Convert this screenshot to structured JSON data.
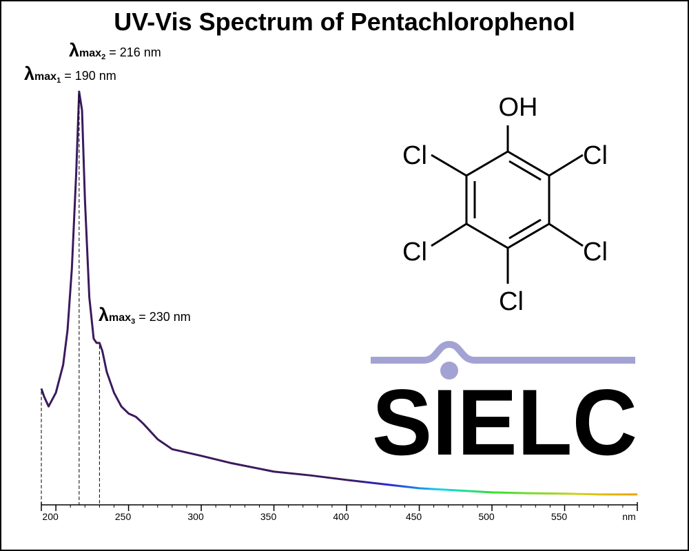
{
  "chart_data": {
    "type": "line",
    "title": "UV-Vis Spectrum of Pentachlorophenol",
    "x_label": "nm",
    "x": [
      190,
      192,
      195,
      200,
      205,
      208,
      211,
      214,
      216,
      218,
      220,
      223,
      226,
      228,
      230,
      232,
      235,
      240,
      245,
      250,
      255,
      260,
      270,
      280,
      300,
      320,
      350,
      375,
      400,
      425,
      450,
      475,
      500,
      525,
      550,
      575,
      600
    ],
    "series": [
      {
        "values": [
          0.28,
          0.26,
          0.237,
          0.27,
          0.337,
          0.42,
          0.569,
          0.8,
          0.995,
          0.95,
          0.734,
          0.5,
          0.4,
          0.39,
          0.39,
          0.37,
          0.32,
          0.27,
          0.237,
          0.22,
          0.212,
          0.196,
          0.158,
          0.134,
          0.118,
          0.101,
          0.08,
          0.071,
          0.06,
          0.05,
          0.04,
          0.035,
          0.03,
          0.028,
          0.027,
          0.025,
          0.025
        ]
      }
    ],
    "line_gradient": [
      {
        "at": 190,
        "color": "#3a1a5c"
      },
      {
        "at": 400,
        "color": "#3a1a5c"
      },
      {
        "at": 430,
        "color": "#2a2ad8"
      },
      {
        "at": 465,
        "color": "#10d8f0"
      },
      {
        "at": 500,
        "color": "#30e030"
      },
      {
        "at": 560,
        "color": "#d0d020"
      },
      {
        "at": 600,
        "color": "#f0a000"
      }
    ],
    "xlim": [
      190,
      600
    ],
    "xticks": [
      200,
      250,
      300,
      350,
      400,
      450,
      500,
      550
    ],
    "xminor_step": 10,
    "ylim": [
      0,
      1
    ],
    "annotations": [
      {
        "symbol": "λ",
        "sub": "max",
        "index": "1",
        "text": " = 190 nm",
        "x": 190
      },
      {
        "symbol": "λ",
        "sub": "max",
        "index": "2",
        "text": " = 216 nm",
        "x": 216
      },
      {
        "symbol": "λ",
        "sub": "max",
        "index": "3",
        "text": " = 230 nm",
        "x": 230
      }
    ]
  },
  "structure": {
    "labels": [
      "OH",
      "Cl",
      "Cl",
      "Cl",
      "Cl",
      "Cl"
    ]
  },
  "logo": "SIELC"
}
